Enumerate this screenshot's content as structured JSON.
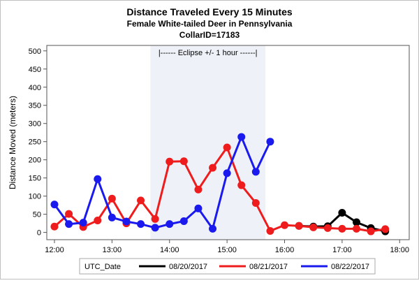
{
  "chart_data": {
    "type": "line",
    "title": "Distance Traveled Every 15 Minutes",
    "subtitle": "Female White-tailed Deer in Pennsylvania",
    "subtitle2": "CollarID=17183",
    "xlabel": "",
    "ylabel": "Distance Moved (meters)",
    "x_ticks": [
      "12:00",
      "13:00",
      "14:00",
      "15:00",
      "16:00",
      "17:00",
      "18:00"
    ],
    "xlim": [
      "11:52",
      "18:10"
    ],
    "y_ticks": [
      0,
      50,
      100,
      150,
      200,
      250,
      300,
      350,
      400,
      450,
      500
    ],
    "ylim": [
      -20,
      515
    ],
    "grid": false,
    "shaded_region": {
      "start": "13:40",
      "end": "15:40",
      "label": "|------  Eclipse +/- 1 hour  ------|",
      "color": "#eef2f8"
    },
    "legend": {
      "title": "UTC_Date",
      "position": "bottom"
    },
    "series": [
      {
        "name": "08/20/2017",
        "color": "#000000",
        "points": [
          [
            "16:15",
            18
          ],
          [
            "16:30",
            16
          ],
          [
            "16:45",
            17
          ],
          [
            "17:00",
            54
          ],
          [
            "17:15",
            28
          ],
          [
            "17:30",
            12
          ],
          [
            "17:45",
            3
          ]
        ]
      },
      {
        "name": "08/21/2017",
        "color": "#ee1c1c",
        "points": [
          [
            "12:00",
            16
          ],
          [
            "12:15",
            51
          ],
          [
            "12:30",
            15
          ],
          [
            "12:45",
            33
          ],
          [
            "13:00",
            93
          ],
          [
            "13:15",
            25
          ],
          [
            "13:30",
            88
          ],
          [
            "13:45",
            37
          ],
          [
            "14:00",
            195
          ],
          [
            "14:15",
            196
          ],
          [
            "14:30",
            118
          ],
          [
            "14:45",
            178
          ],
          [
            "15:00",
            234
          ],
          [
            "15:15",
            130
          ],
          [
            "15:30",
            81
          ],
          [
            "15:45",
            4
          ],
          [
            "16:00",
            20
          ],
          [
            "16:15",
            18
          ],
          [
            "16:30",
            14
          ],
          [
            "16:45",
            12
          ],
          [
            "17:00",
            10
          ],
          [
            "17:15",
            10
          ],
          [
            "17:30",
            3
          ],
          [
            "17:45",
            9
          ]
        ]
      },
      {
        "name": "08/22/2017",
        "color": "#1a1aee",
        "points": [
          [
            "12:00",
            77
          ],
          [
            "12:15",
            23
          ],
          [
            "12:30",
            27
          ],
          [
            "12:45",
            147
          ],
          [
            "13:00",
            41
          ],
          [
            "13:15",
            30
          ],
          [
            "13:30",
            23
          ],
          [
            "13:45",
            13
          ],
          [
            "14:00",
            23
          ],
          [
            "14:15",
            31
          ],
          [
            "14:30",
            66
          ],
          [
            "14:45",
            10
          ],
          [
            "15:00",
            163
          ],
          [
            "15:15",
            263
          ],
          [
            "15:30",
            167
          ],
          [
            "15:45",
            250
          ]
        ]
      }
    ]
  }
}
